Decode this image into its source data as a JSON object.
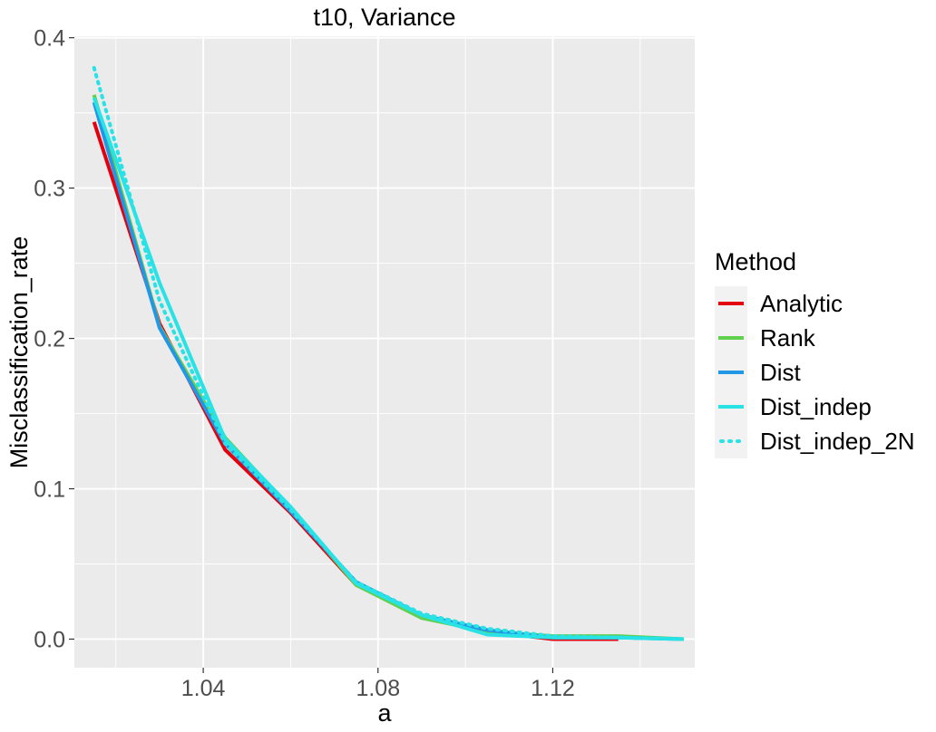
{
  "chart_data": {
    "type": "line",
    "title": "t10, Variance",
    "xlabel": "a",
    "ylabel": "Misclassification_rate",
    "xlim": [
      1.0105,
      1.1525
    ],
    "ylim": [
      -0.019,
      0.401
    ],
    "x_ticks": [
      1.04,
      1.08,
      1.12
    ],
    "x_tick_labels": [
      "1.04",
      "1.08",
      "1.12"
    ],
    "x_minor": [
      1.02,
      1.06,
      1.1,
      1.14
    ],
    "y_ticks": [
      0.0,
      0.1,
      0.2,
      0.3,
      0.4
    ],
    "y_tick_labels": [
      "0.0",
      "0.1",
      "0.2",
      "0.3",
      "0.4"
    ],
    "grid": true,
    "legend_position": "right",
    "legend_title": "Method",
    "series": [
      {
        "name": "Analytic",
        "color": "#e3000f",
        "style": "solid",
        "x": [
          1.015,
          1.03,
          1.045,
          1.06,
          1.075,
          1.09,
          1.105,
          1.12,
          1.135
        ],
        "y": [
          0.344,
          0.21,
          0.126,
          0.084,
          0.036,
          0.015,
          0.005,
          0.0,
          0.0
        ]
      },
      {
        "name": "Rank",
        "color": "#61d04f",
        "style": "solid",
        "x": [
          1.015,
          1.03,
          1.045,
          1.06,
          1.075,
          1.09,
          1.105,
          1.12,
          1.135,
          1.15
        ],
        "y": [
          0.362,
          0.208,
          0.134,
          0.087,
          0.036,
          0.014,
          0.005,
          0.002,
          0.002,
          0.0
        ]
      },
      {
        "name": "Dist",
        "color": "#2297e6",
        "style": "solid",
        "x": [
          1.015,
          1.03,
          1.045,
          1.06,
          1.075,
          1.09,
          1.105,
          1.12,
          1.135,
          1.15
        ],
        "y": [
          0.357,
          0.207,
          0.13,
          0.085,
          0.038,
          0.016,
          0.006,
          0.001,
          0.001,
          0.0
        ]
      },
      {
        "name": "Dist_indep",
        "color": "#28e2e5",
        "style": "solid",
        "x": [
          1.015,
          1.03,
          1.045,
          1.06,
          1.075,
          1.09,
          1.105,
          1.12,
          1.135,
          1.15
        ],
        "y": [
          0.36,
          0.237,
          0.133,
          0.088,
          0.037,
          0.016,
          0.003,
          0.001,
          0.001,
          0.0
        ]
      },
      {
        "name": "Dist_indep_2N",
        "color": "#28e2e5",
        "style": "dotted",
        "x": [
          1.015,
          1.03,
          1.045,
          1.06,
          1.075,
          1.09,
          1.105,
          1.12,
          1.135,
          1.15
        ],
        "y": [
          0.38,
          0.225,
          0.13,
          0.086,
          0.038,
          0.017,
          0.007,
          0.002,
          0.001,
          0.0
        ]
      }
    ]
  }
}
